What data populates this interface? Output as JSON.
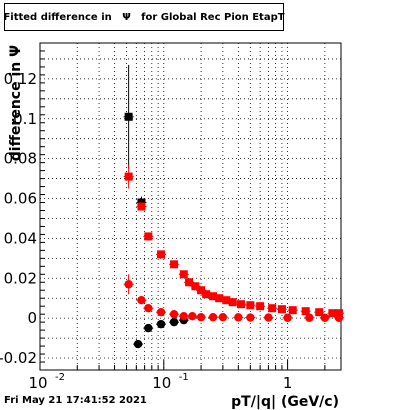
{
  "title_parts": {
    "prefix": "Fitted difference in",
    "symbol": "Ψ",
    "suffix": "for Global Rec Pion EtapT"
  },
  "footer": {
    "timestamp": "Fri May 21 17:41:52 2021"
  },
  "chart_data": {
    "type": "scatter",
    "title": "Fitted difference in Ψ for Global Rec Pion EtapT",
    "xlabel": "pT/|q| (GeV/c)",
    "ylabel": "difference in Ψ",
    "x_scale": "log",
    "xlim": [
      0.01,
      2.7
    ],
    "ylim": [
      -0.026,
      0.138
    ],
    "grid": true,
    "x_ticks": [
      {
        "base": "10",
        "exp": "-2",
        "value": 0.01
      },
      {
        "base": "10",
        "exp": "-1",
        "value": 0.1
      },
      {
        "base": "1",
        "exp": "",
        "value": 1
      }
    ],
    "y_ticks": [
      -0.02,
      0,
      0.02,
      0.04,
      0.06,
      0.08,
      0.1,
      0.12
    ],
    "y_tick_labels": [
      "-0.02",
      "0",
      "0.02",
      "0.04",
      "0.06",
      "0.08",
      "0.1",
      "0.12"
    ],
    "series": [
      {
        "marker": "square",
        "color": "#000000",
        "points": [
          {
            "x": 0.052,
            "y": 0.101,
            "err": 0.026
          },
          {
            "x": 0.066,
            "y": 0.058,
            "err": 0.003
          }
        ]
      },
      {
        "marker": "square",
        "color": "#ff0000",
        "points": [
          {
            "x": 0.052,
            "y": 0.071,
            "err": 0.006
          },
          {
            "x": 0.066,
            "y": 0.056,
            "err": 0.002
          },
          {
            "x": 0.075,
            "y": 0.041
          },
          {
            "x": 0.095,
            "y": 0.032
          },
          {
            "x": 0.121,
            "y": 0.027
          },
          {
            "x": 0.145,
            "y": 0.022
          },
          {
            "x": 0.16,
            "y": 0.018
          },
          {
            "x": 0.18,
            "y": 0.016
          },
          {
            "x": 0.2,
            "y": 0.014
          },
          {
            "x": 0.22,
            "y": 0.012
          },
          {
            "x": 0.25,
            "y": 0.011
          },
          {
            "x": 0.28,
            "y": 0.01
          },
          {
            "x": 0.32,
            "y": 0.009
          },
          {
            "x": 0.36,
            "y": 0.008
          },
          {
            "x": 0.42,
            "y": 0.007
          },
          {
            "x": 0.5,
            "y": 0.0065
          },
          {
            "x": 0.6,
            "y": 0.006
          },
          {
            "x": 0.75,
            "y": 0.005
          },
          {
            "x": 0.9,
            "y": 0.0045
          },
          {
            "x": 1.1,
            "y": 0.004
          },
          {
            "x": 1.4,
            "y": 0.0035
          },
          {
            "x": 1.8,
            "y": 0.003
          },
          {
            "x": 2.3,
            "y": 0.0025
          },
          {
            "x": 2.6,
            "y": 0.0025
          }
        ]
      },
      {
        "marker": "circle",
        "color": "#000000",
        "points": [
          {
            "x": 0.062,
            "y": -0.013
          },
          {
            "x": 0.075,
            "y": -0.005
          },
          {
            "x": 0.095,
            "y": -0.003
          },
          {
            "x": 0.121,
            "y": -0.002
          },
          {
            "x": 0.145,
            "y": -0.001
          }
        ]
      },
      {
        "marker": "circle",
        "color": "#ff0000",
        "points": [
          {
            "x": 0.052,
            "y": 0.017,
            "err": 0.005
          },
          {
            "x": 0.066,
            "y": 0.009
          },
          {
            "x": 0.075,
            "y": 0.005
          },
          {
            "x": 0.095,
            "y": 0.003
          },
          {
            "x": 0.121,
            "y": 0.002
          },
          {
            "x": 0.145,
            "y": 0.001
          },
          {
            "x": 0.17,
            "y": 0.001
          },
          {
            "x": 0.2,
            "y": 0.0005
          },
          {
            "x": 0.25,
            "y": 0.0005
          },
          {
            "x": 0.3,
            "y": 0.0005
          },
          {
            "x": 0.4,
            "y": 0.0004
          },
          {
            "x": 0.5,
            "y": 0.0003
          },
          {
            "x": 0.7,
            "y": 0.0003
          },
          {
            "x": 1.0,
            "y": 0.0002
          },
          {
            "x": 1.5,
            "y": 0.0002
          },
          {
            "x": 2.0,
            "y": 0.0002
          },
          {
            "x": 2.6,
            "y": 0.0002
          }
        ]
      }
    ]
  }
}
